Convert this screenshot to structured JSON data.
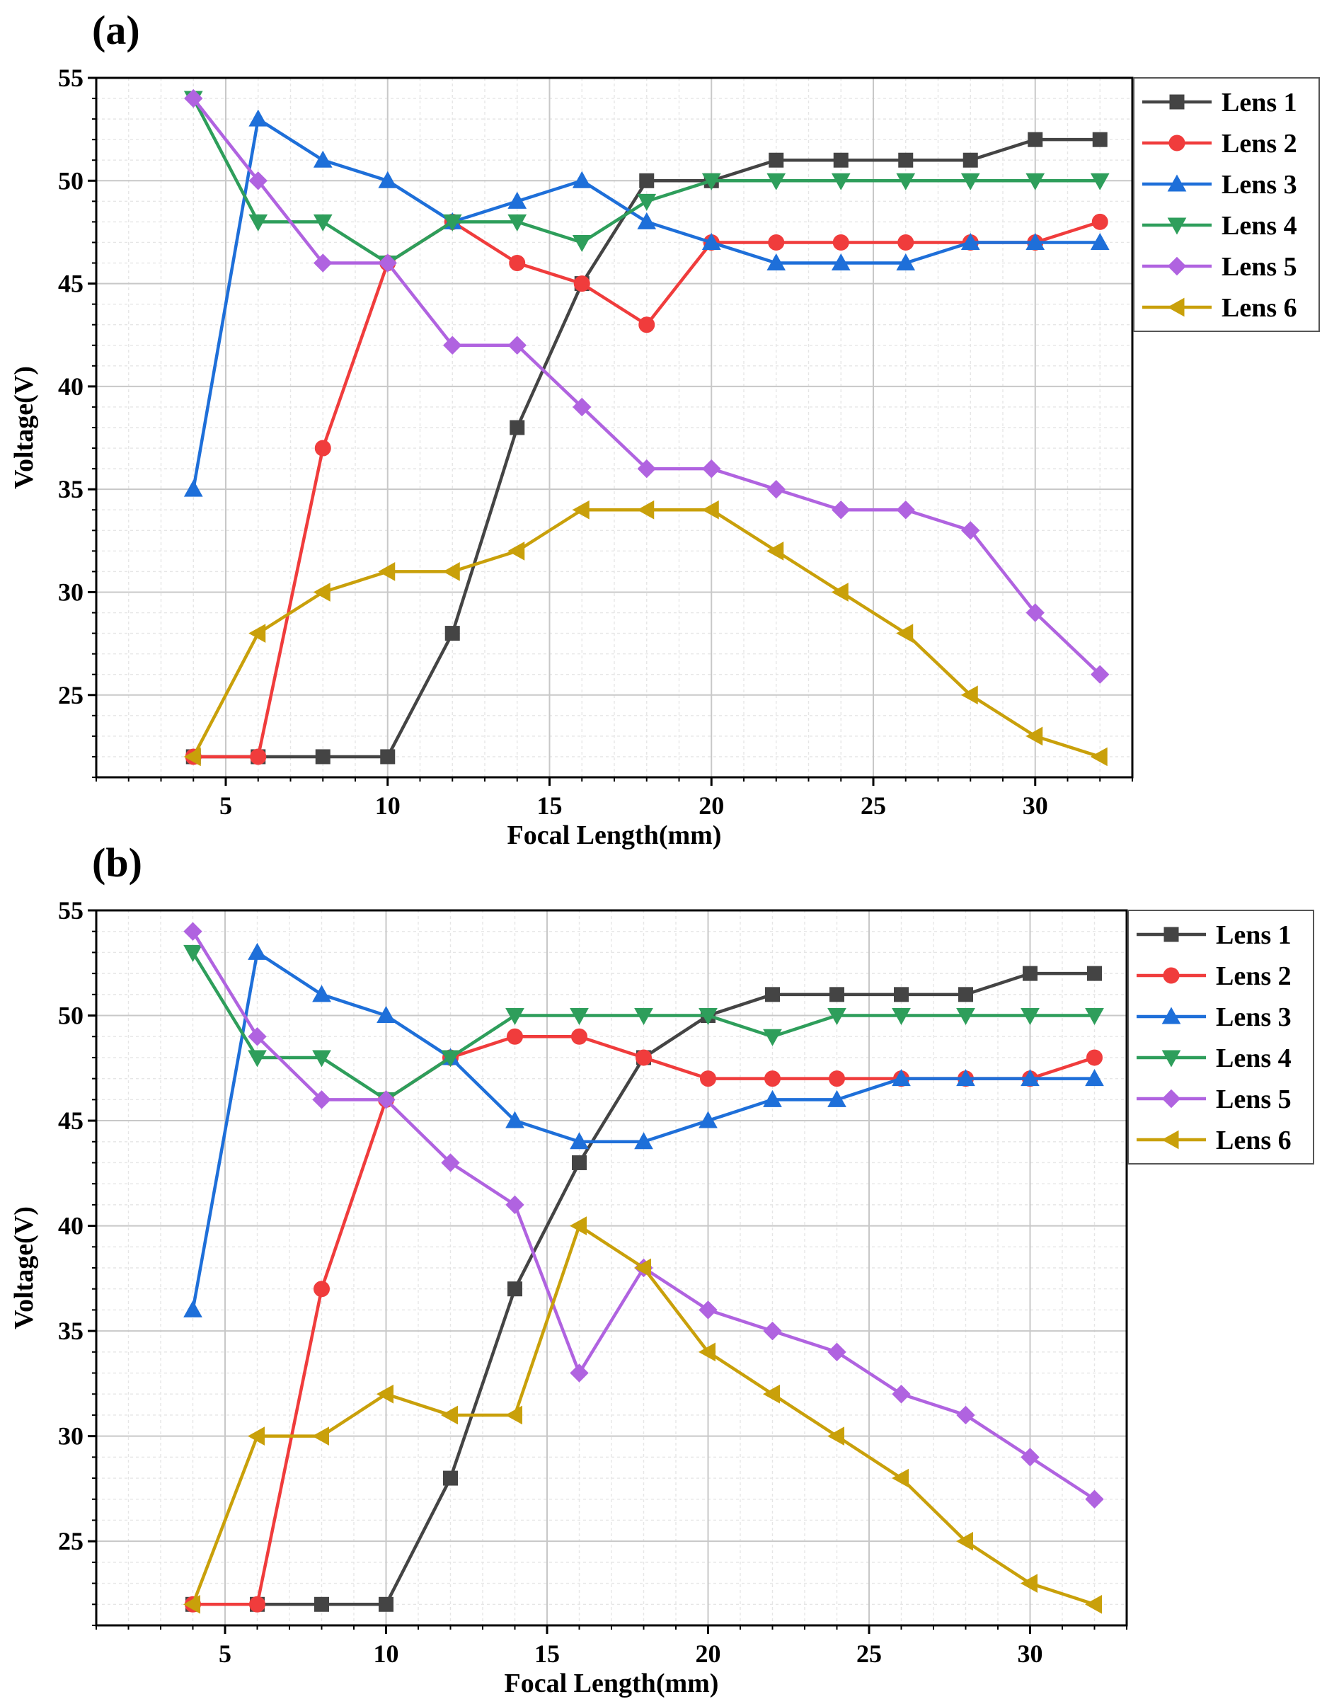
{
  "chart_data": [
    {
      "type": "line",
      "panel_label": "(a)",
      "xlabel": "Focal Length(mm)",
      "ylabel": "Voltage(V)",
      "xlim": [
        1,
        33
      ],
      "ylim": [
        21,
        55
      ],
      "xticks": [
        5,
        10,
        15,
        20,
        25,
        30
      ],
      "yticks": [
        25,
        30,
        35,
        40,
        45,
        50,
        55
      ],
      "grid": true,
      "legend_position": "top-right-outside",
      "x": [
        4,
        6,
        8,
        10,
        12,
        14,
        16,
        18,
        20,
        22,
        24,
        26,
        28,
        30,
        32
      ],
      "series": [
        {
          "name": "Lens 1",
          "color": "#444444",
          "marker": "square",
          "values": [
            22,
            22,
            22,
            22,
            28,
            38,
            45,
            50,
            50,
            51,
            51,
            51,
            51,
            52,
            52
          ]
        },
        {
          "name": "Lens 2",
          "color": "#f03c3c",
          "marker": "circle",
          "values": [
            22,
            22,
            37,
            46,
            48,
            46,
            45,
            43,
            47,
            47,
            47,
            47,
            47,
            47,
            48
          ]
        },
        {
          "name": "Lens 3",
          "color": "#1e6fd9",
          "marker": "triangle-up",
          "values": [
            35,
            53,
            51,
            50,
            48,
            49,
            50,
            48,
            47,
            46,
            46,
            46,
            47,
            47,
            47
          ]
        },
        {
          "name": "Lens 4",
          "color": "#2e9e5b",
          "marker": "triangle-down",
          "values": [
            54,
            48,
            48,
            46,
            48,
            48,
            47,
            49,
            50,
            50,
            50,
            50,
            50,
            50,
            50
          ]
        },
        {
          "name": "Lens 5",
          "color": "#b063e0",
          "marker": "diamond",
          "values": [
            54,
            50,
            46,
            46,
            42,
            42,
            39,
            36,
            36,
            35,
            34,
            34,
            33,
            29,
            26
          ]
        },
        {
          "name": "Lens 6",
          "color": "#c9a00a",
          "marker": "triangle-left",
          "values": [
            22,
            28,
            30,
            31,
            31,
            32,
            34,
            34,
            34,
            32,
            30,
            28,
            25,
            23,
            22
          ]
        }
      ]
    },
    {
      "type": "line",
      "panel_label": "(b)",
      "xlabel": "Focal Length(mm)",
      "ylabel": "Voltage(V)",
      "xlim": [
        1,
        33
      ],
      "ylim": [
        21,
        55
      ],
      "xticks": [
        5,
        10,
        15,
        20,
        25,
        30
      ],
      "yticks": [
        25,
        30,
        35,
        40,
        45,
        50,
        55
      ],
      "grid": true,
      "legend_position": "top-right-outside",
      "x": [
        4,
        6,
        8,
        10,
        12,
        14,
        16,
        18,
        20,
        22,
        24,
        26,
        28,
        30,
        32
      ],
      "series": [
        {
          "name": "Lens 1",
          "color": "#444444",
          "marker": "square",
          "values": [
            22,
            22,
            22,
            22,
            28,
            37,
            43,
            48,
            50,
            51,
            51,
            51,
            51,
            52,
            52
          ]
        },
        {
          "name": "Lens 2",
          "color": "#f03c3c",
          "marker": "circle",
          "values": [
            22,
            22,
            37,
            46,
            48,
            49,
            49,
            48,
            47,
            47,
            47,
            47,
            47,
            47,
            48
          ]
        },
        {
          "name": "Lens 3",
          "color": "#1e6fd9",
          "marker": "triangle-up",
          "values": [
            36,
            53,
            51,
            50,
            48,
            45,
            44,
            44,
            45,
            46,
            46,
            47,
            47,
            47,
            47
          ]
        },
        {
          "name": "Lens 4",
          "color": "#2e9e5b",
          "marker": "triangle-down",
          "values": [
            53,
            48,
            48,
            46,
            48,
            50,
            50,
            50,
            50,
            49,
            50,
            50,
            50,
            50,
            50
          ]
        },
        {
          "name": "Lens 5",
          "color": "#b063e0",
          "marker": "diamond",
          "values": [
            54,
            49,
            46,
            46,
            43,
            41,
            33,
            38,
            36,
            35,
            34,
            32,
            31,
            29,
            27
          ]
        },
        {
          "name": "Lens 6",
          "color": "#c9a00a",
          "marker": "triangle-left",
          "values": [
            22,
            30,
            30,
            32,
            31,
            31,
            40,
            38,
            34,
            32,
            30,
            28,
            25,
            23,
            22
          ]
        }
      ]
    }
  ]
}
